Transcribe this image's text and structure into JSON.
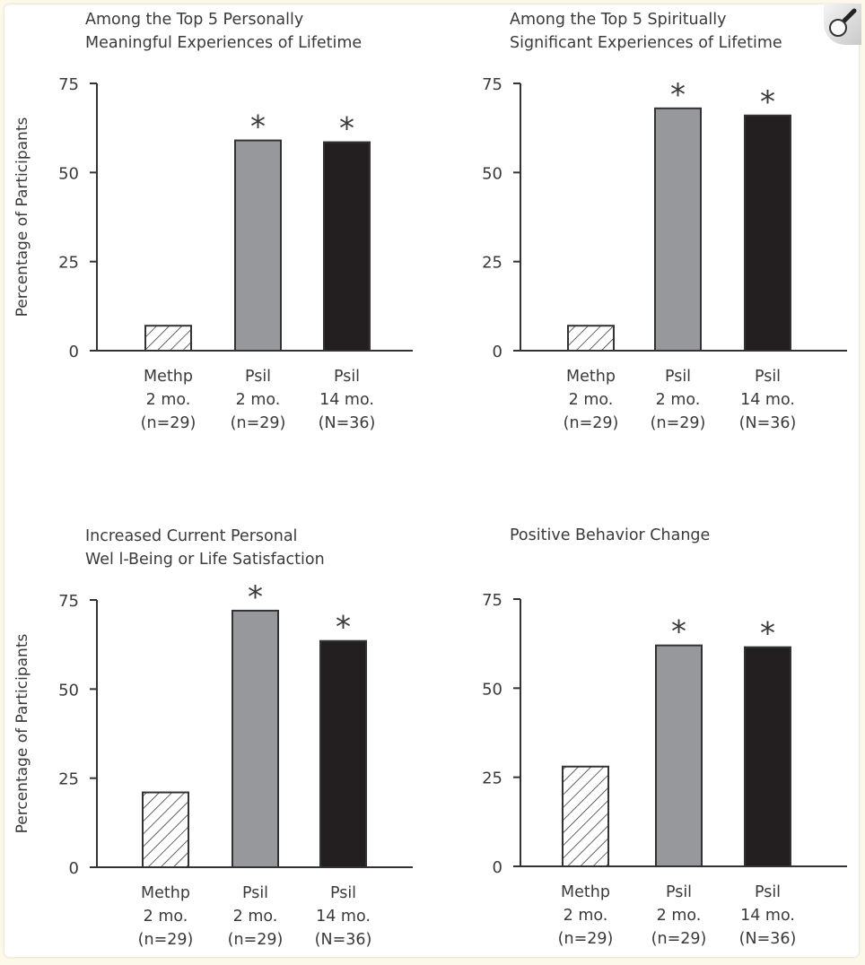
{
  "zoom_button": {
    "icon": "magnifier-icon"
  },
  "y_axis_label": "Percentage of Participants",
  "colors": {
    "methp": "#ffffff",
    "psil_2mo": "#97989b",
    "psil_14mo": "#231f20",
    "axis": "#333333"
  },
  "chart_data": [
    {
      "type": "bar",
      "title": [
        "Among the Top 5 Personally",
        "Meaningful Experiences of Lifetime"
      ],
      "ylabel": "Percentage of Participants",
      "ylim": [
        0,
        75
      ],
      "yticks": [
        0,
        25,
        50,
        75
      ],
      "categories": [
        [
          "Methp",
          "2 mo.",
          "(n=29)"
        ],
        [
          "Psil",
          "2 mo.",
          "(n=29)"
        ],
        [
          "Psil",
          "14 mo.",
          "(N=36)"
        ]
      ],
      "values": [
        7,
        59,
        58.5
      ],
      "significant": [
        false,
        true,
        true
      ],
      "grid": false
    },
    {
      "type": "bar",
      "title": [
        "Among the Top 5 Spiritually",
        "Significant Experiences of Lifetime"
      ],
      "ylabel": "",
      "ylim": [
        0,
        75
      ],
      "yticks": [
        0,
        25,
        50,
        75
      ],
      "categories": [
        [
          "Methp",
          "2 mo.",
          "(n=29)"
        ],
        [
          "Psil",
          "2 mo.",
          "(n=29)"
        ],
        [
          "Psil",
          "14 mo.",
          "(N=36)"
        ]
      ],
      "values": [
        7,
        68,
        66
      ],
      "significant": [
        false,
        true,
        true
      ],
      "grid": false
    },
    {
      "type": "bar",
      "title": [
        "Increased Current Personal",
        "Wel l-Being or Life Satisfaction"
      ],
      "ylabel": "Percentage of Participants",
      "ylim": [
        0,
        75
      ],
      "yticks": [
        0,
        25,
        50,
        75
      ],
      "categories": [
        [
          "Methp",
          "2 mo.",
          "(n=29)"
        ],
        [
          "Psil",
          "2 mo.",
          "(n=29)"
        ],
        [
          "Psil",
          "14 mo.",
          "(N=36)"
        ]
      ],
      "values": [
        21,
        72,
        63.5
      ],
      "significant": [
        false,
        true,
        true
      ],
      "grid": false
    },
    {
      "type": "bar",
      "title": [
        "Positive Behavior Change"
      ],
      "ylabel": "",
      "ylim": [
        0,
        75
      ],
      "yticks": [
        0,
        25,
        50,
        75
      ],
      "categories": [
        [
          "Methp",
          "2 mo.",
          "(n=29)"
        ],
        [
          "Psil",
          "2 mo.",
          "(n=29)"
        ],
        [
          "Psil",
          "14 mo.",
          "(N=36)"
        ]
      ],
      "values": [
        28,
        62,
        61.5
      ],
      "significant": [
        false,
        true,
        true
      ],
      "grid": false
    }
  ],
  "significance_marker": "*"
}
